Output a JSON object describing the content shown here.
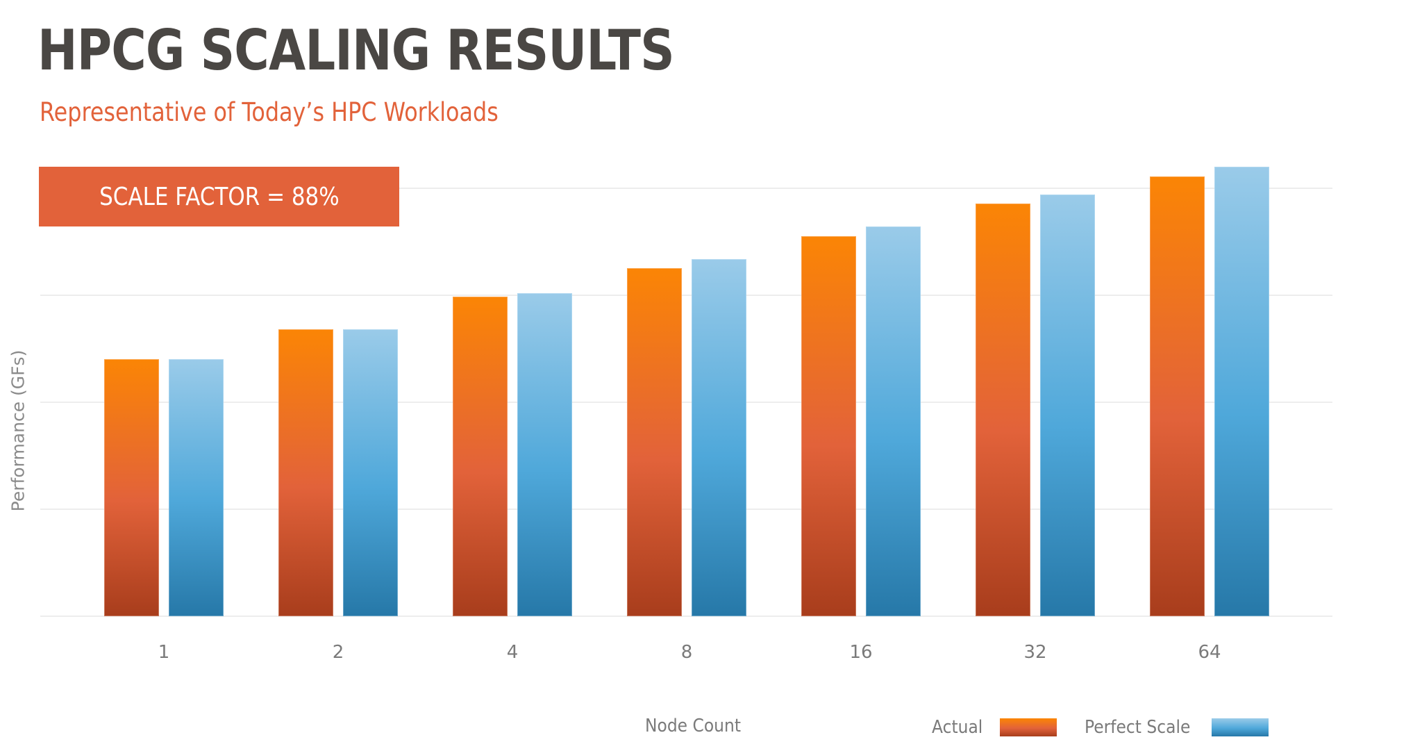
{
  "header": {
    "title": "HPCG SCALING RESULTS",
    "subtitle": "Representative of Today’s HPC Workloads"
  },
  "callout": {
    "text": "SCALE FACTOR = 88%",
    "color": "#E2623A"
  },
  "colors": {
    "actual_top": "#FB8505",
    "actual_bottom": "#A83D1C",
    "perfect_top": "#9ACBE9",
    "perfect_bottom": "#2678A8",
    "title": "#4A4744",
    "accent": "#E2623A"
  },
  "chart_data": {
    "type": "bar",
    "title": "HPCG SCALING RESULTS",
    "subtitle": "Representative of Today’s HPC Workloads",
    "annotation": "SCALE FACTOR = 88%",
    "xlabel": "Node Count",
    "ylabel": "Performance (GFs)",
    "categories": [
      "1",
      "2",
      "4",
      "8",
      "16",
      "32",
      "64"
    ],
    "series": [
      {
        "name": "Actual",
        "values": [
          2.4,
          2.68,
          2.99,
          3.25,
          3.55,
          3.86,
          4.11
        ]
      },
      {
        "name": "Perfect Scale",
        "values": [
          2.4,
          2.68,
          3.02,
          3.34,
          3.64,
          3.94,
          4.2
        ]
      }
    ],
    "value_units": "relative (gridline units; y-axis tick values not shown)",
    "ylim": [
      0,
      4
    ],
    "grid": true,
    "gridline_count": 5,
    "legend_position": "bottom-right"
  },
  "legend": {
    "actual_label": "Actual",
    "perfect_label": "Perfect Scale"
  }
}
